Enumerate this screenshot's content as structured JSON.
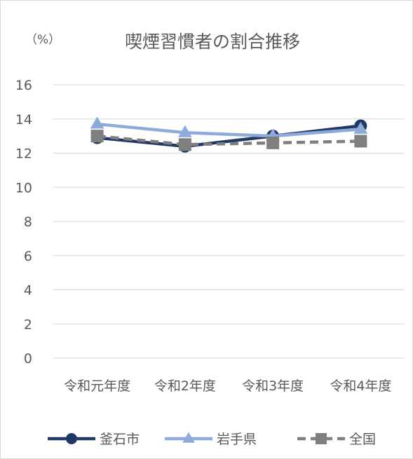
{
  "chart_data": {
    "type": "line",
    "title": "喫煙習慣者の割合推移",
    "unit_label": "（%）",
    "categories": [
      "令和元年度",
      "令和2年度",
      "令和3年度",
      "令和4年度"
    ],
    "ylim": [
      0,
      16
    ],
    "yticks": [
      0,
      2,
      4,
      6,
      8,
      10,
      12,
      14,
      16
    ],
    "grid": true,
    "legend_position": "bottom",
    "series": [
      {
        "name": "釜石市",
        "values": [
          12.9,
          12.4,
          13.0,
          13.6
        ],
        "color": "#1f3864",
        "marker": "circle",
        "dash": "solid"
      },
      {
        "name": "岩手県",
        "values": [
          13.7,
          13.2,
          13.0,
          13.4
        ],
        "color": "#8eaadb",
        "marker": "triangle",
        "dash": "solid"
      },
      {
        "name": "全国",
        "values": [
          13.0,
          12.5,
          12.6,
          12.7
        ],
        "color": "#7f7f7f",
        "marker": "square",
        "dash": "dashed"
      }
    ]
  }
}
